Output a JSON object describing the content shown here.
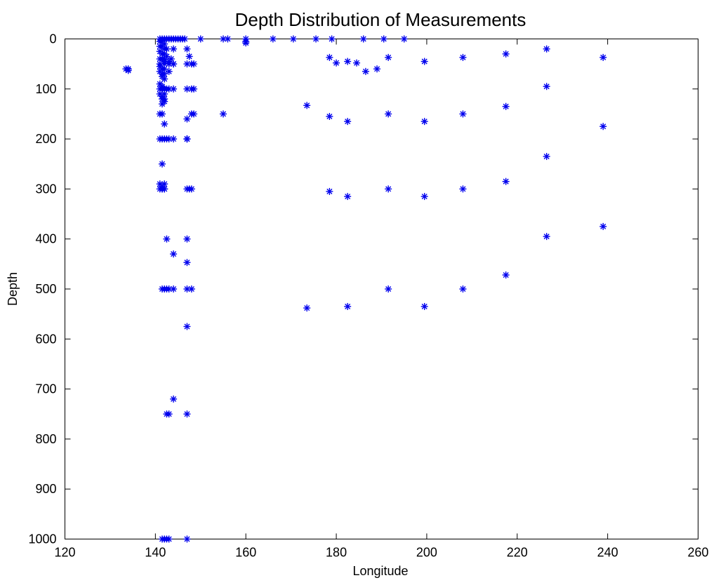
{
  "chart_data": {
    "type": "scatter",
    "title": "Depth Distribution of Measurements",
    "xlabel": "Longitude",
    "ylabel": "Depth",
    "xlim": [
      120,
      260
    ],
    "ylim": [
      0,
      1000
    ],
    "y_reversed": true,
    "x_ticks": [
      "120",
      "140",
      "160",
      "180",
      "200",
      "220",
      "240",
      "260"
    ],
    "y_ticks": [
      "0",
      "100",
      "200",
      "300",
      "400",
      "500",
      "600",
      "700",
      "800",
      "900",
      "1000"
    ],
    "grid": false,
    "marker": "asterisk",
    "marker_color": "#0000ee",
    "series": [
      {
        "x": [
          141,
          141.5,
          142,
          142.5,
          143,
          143.5,
          144,
          144.5,
          145,
          145.5,
          146,
          146.5,
          150,
          155,
          156,
          160,
          166,
          170.5,
          175.5,
          179,
          186,
          190.5,
          195,
          160,
          160,
          141,
          141.5,
          142,
          141,
          141.5,
          142,
          142.5,
          141,
          141.5,
          142,
          142.5,
          141,
          141.5,
          142,
          142,
          143,
          143.5,
          144,
          147,
          141,
          142,
          143,
          144,
          141,
          141.5,
          142,
          133.5,
          134,
          134,
          141,
          141.5,
          142,
          143,
          144,
          147,
          148,
          147.5,
          148.5,
          143,
          141.5,
          142,
          141,
          141.5,
          141.5,
          142,
          141,
          141.5,
          142,
          142.5,
          143,
          144,
          147,
          148,
          148.5,
          141,
          141.5,
          142,
          141.5,
          141.5,
          142,
          142,
          141,
          141.5,
          147,
          148,
          148.5,
          155,
          147,
          142,
          141,
          141.5,
          142,
          142.5,
          143,
          144,
          147,
          147,
          141.5,
          141,
          141.5,
          142,
          141.5,
          142,
          141,
          141.5,
          142,
          147,
          147.5,
          148,
          142.5,
          147,
          144,
          147,
          141.5,
          142,
          142.5,
          143,
          144,
          147,
          148,
          147,
          144,
          142.5,
          143,
          147,
          141.5,
          142,
          142.5,
          143,
          147,
          178.5,
          180,
          182.5,
          184.5,
          186.5,
          189,
          191.5,
          199.5,
          208,
          217.5,
          226.5,
          239,
          226.5,
          173.5,
          178.5,
          182.5,
          191.5,
          199.5,
          208,
          217.5,
          239,
          226.5,
          178.5,
          182.5,
          191.5,
          199.5,
          208,
          217.5,
          226.5,
          239,
          217.5,
          173.5,
          182.5,
          191.5,
          199.5,
          208
        ],
        "y": [
          0,
          0,
          0,
          0,
          0,
          0,
          0,
          0,
          0,
          0,
          0,
          0,
          0,
          0,
          0,
          0,
          0,
          0,
          0,
          0,
          0,
          0,
          0,
          5,
          8,
          5,
          5,
          10,
          15,
          15,
          20,
          20,
          25,
          30,
          30,
          35,
          40,
          40,
          40,
          45,
          45,
          40,
          20,
          20,
          50,
          50,
          50,
          50,
          55,
          60,
          60,
          60,
          60,
          63,
          65,
          70,
          70,
          65,
          50,
          50,
          50,
          35,
          50,
          50,
          75,
          80,
          90,
          95,
          100,
          100,
          100,
          100,
          100,
          100,
          100,
          100,
          100,
          100,
          100,
          110,
          115,
          110,
          120,
          130,
          120,
          125,
          150,
          150,
          160,
          150,
          150,
          150,
          200,
          170,
          200,
          200,
          200,
          200,
          200,
          200,
          200,
          200,
          250,
          290,
          295,
          290,
          300,
          300,
          300,
          300,
          300,
          300,
          300,
          300,
          400,
          400,
          430,
          447,
          500,
          500,
          500,
          500,
          500,
          500,
          500,
          575,
          720,
          750,
          750,
          750,
          1000,
          1000,
          1000,
          1000,
          1000,
          37,
          48,
          45,
          48,
          65,
          60,
          37,
          45,
          37,
          30,
          20,
          37,
          95,
          133,
          155,
          165,
          150,
          165,
          150,
          135,
          175,
          235,
          305,
          315,
          300,
          315,
          300,
          285,
          395,
          375,
          472,
          538,
          535,
          500,
          535,
          500
        ]
      }
    ]
  }
}
